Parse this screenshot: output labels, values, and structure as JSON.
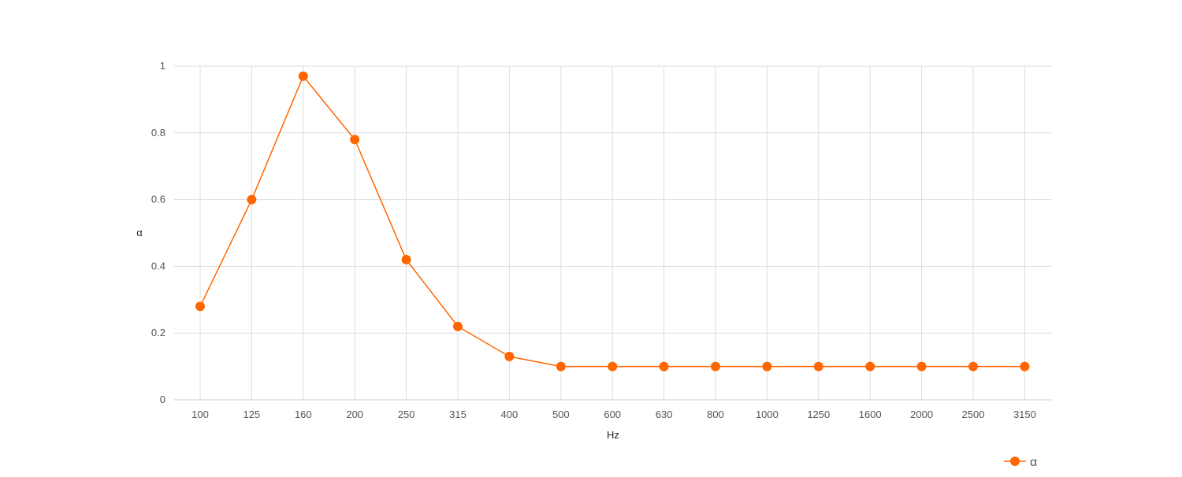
{
  "chart_data": {
    "type": "line",
    "categories": [
      "100",
      "125",
      "160",
      "200",
      "250",
      "315",
      "400",
      "500",
      "600",
      "630",
      "800",
      "1000",
      "1250",
      "1600",
      "2000",
      "2500",
      "3150"
    ],
    "series": [
      {
        "name": "α",
        "values": [
          0.28,
          0.6,
          0.97,
          0.78,
          0.42,
          0.22,
          0.13,
          0.1,
          0.1,
          0.1,
          0.1,
          0.1,
          0.1,
          0.1,
          0.1,
          0.1,
          0.1
        ],
        "color": "#ff6600"
      }
    ],
    "xlabel": "Hz",
    "ylabel": "α",
    "ylim": [
      0,
      1
    ],
    "yticks": [
      "0",
      "0.2",
      "0.4",
      "0.6",
      "0.8",
      "1"
    ],
    "grid": true,
    "legend_position": "bottom-right"
  }
}
